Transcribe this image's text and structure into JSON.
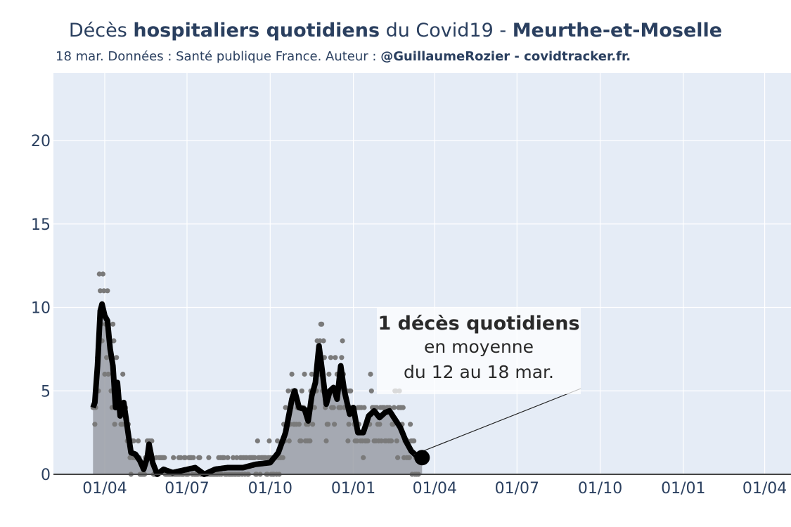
{
  "title": {
    "part1": "Décès ",
    "part2_bold": "hospitaliers quotidiens",
    "part3": " du Covid19 - ",
    "part4_bold": "Meurthe-et-Moselle"
  },
  "subtitle": {
    "normal": "18 mar. Données : Santé publique France. Auteur : ",
    "bold": "@GuillaumeRozier - covidtracker.fr."
  },
  "annotation": {
    "line1": "1 décès quotidiens",
    "line2": "en moyenne",
    "line3": "du 12 au 18 mar."
  },
  "colors": {
    "plot_bg": "#e5ecf6",
    "grid": "#ffffff",
    "line": "#000000",
    "area": "#9a9ea6",
    "dots": "#7a7a7a",
    "text": "#2a3f5f"
  },
  "chart_data": {
    "type": "line",
    "x_start": "2020-03-19",
    "x_end": "2021-03-18",
    "ylim": [
      0,
      24
    ],
    "yticks": [
      0,
      5,
      10,
      15,
      20
    ],
    "xticks": [
      {
        "date": "2020-04-01",
        "label": "01/04"
      },
      {
        "date": "2020-07-01",
        "label": "01/07"
      },
      {
        "date": "2020-10-01",
        "label": "01/10"
      },
      {
        "date": "2021-01-01",
        "label": "01/01"
      },
      {
        "date": "2021-04-01",
        "label": "01/04"
      },
      {
        "date": "2021-07-01",
        "label": "01/07"
      },
      {
        "date": "2021-10-01",
        "label": "01/10"
      },
      {
        "date": "2022-01-01",
        "label": "01/01"
      },
      {
        "date": "2022-04-01",
        "label": "01/04"
      }
    ],
    "rolling_mean_keypoints": [
      [
        "2020-03-19",
        4
      ],
      [
        "2020-03-21",
        4.3
      ],
      [
        "2020-03-24",
        6.5
      ],
      [
        "2020-03-27",
        9.8
      ],
      [
        "2020-03-29",
        10.2
      ],
      [
        "2020-04-01",
        9.5
      ],
      [
        "2020-04-04",
        9.2
      ],
      [
        "2020-04-07",
        7.5
      ],
      [
        "2020-04-10",
        6.5
      ],
      [
        "2020-04-13",
        4.0
      ],
      [
        "2020-04-15",
        5.5
      ],
      [
        "2020-04-18",
        3.5
      ],
      [
        "2020-04-22",
        4.3
      ],
      [
        "2020-04-26",
        2.8
      ],
      [
        "2020-04-30",
        1.3
      ],
      [
        "2020-05-05",
        1.2
      ],
      [
        "2020-05-10",
        0.8
      ],
      [
        "2020-05-14",
        0.3
      ],
      [
        "2020-05-18",
        1.0
      ],
      [
        "2020-05-20",
        1.8
      ],
      [
        "2020-05-24",
        0.7
      ],
      [
        "2020-05-29",
        0
      ],
      [
        "2020-06-05",
        0.3
      ],
      [
        "2020-06-15",
        0.1
      ],
      [
        "2020-07-10",
        0.4
      ],
      [
        "2020-07-20",
        0
      ],
      [
        "2020-08-01",
        0.3
      ],
      [
        "2020-08-15",
        0.4
      ],
      [
        "2020-09-01",
        0.4
      ],
      [
        "2020-09-15",
        0.6
      ],
      [
        "2020-10-01",
        0.7
      ],
      [
        "2020-10-10",
        1.3
      ],
      [
        "2020-10-18",
        2.5
      ],
      [
        "2020-10-25",
        4.5
      ],
      [
        "2020-10-28",
        5.0
      ],
      [
        "2020-11-02",
        4.0
      ],
      [
        "2020-11-08",
        3.9
      ],
      [
        "2020-11-12",
        3.2
      ],
      [
        "2020-11-16",
        4.7
      ],
      [
        "2020-11-20",
        5.5
      ],
      [
        "2020-11-24",
        7.7
      ],
      [
        "2020-11-28",
        6.0
      ],
      [
        "2020-12-02",
        4.2
      ],
      [
        "2020-12-06",
        5.0
      ],
      [
        "2020-12-10",
        5.2
      ],
      [
        "2020-12-14",
        4.5
      ],
      [
        "2020-12-18",
        6.5
      ],
      [
        "2020-12-22",
        5.0
      ],
      [
        "2020-12-28",
        3.6
      ],
      [
        "2021-01-01",
        4.0
      ],
      [
        "2021-01-06",
        2.5
      ],
      [
        "2021-01-12",
        2.5
      ],
      [
        "2021-01-18",
        3.5
      ],
      [
        "2021-01-24",
        3.8
      ],
      [
        "2021-01-30",
        3.4
      ],
      [
        "2021-02-05",
        3.7
      ],
      [
        "2021-02-10",
        3.8
      ],
      [
        "2021-02-16",
        3.3
      ],
      [
        "2021-02-22",
        2.8
      ],
      [
        "2021-02-28",
        2.0
      ],
      [
        "2021-03-06",
        1.4
      ],
      [
        "2021-03-12",
        1.1
      ],
      [
        "2021-03-18",
        1.0
      ]
    ],
    "annotation_point": {
      "x": "2021-03-18",
      "y": 1
    }
  }
}
